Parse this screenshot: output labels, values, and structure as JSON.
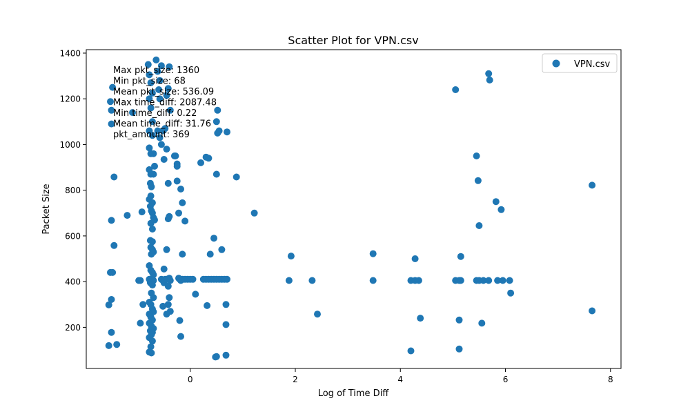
{
  "chart_data": {
    "type": "scatter",
    "title": "Scatter Plot for VPN.csv",
    "xlabel": "Log of Time Diff",
    "ylabel": "Packet Size",
    "xlim": [
      -1.98,
      8.2
    ],
    "ylim": [
      20,
      1415
    ],
    "xticks": [
      0,
      2,
      4,
      6,
      8
    ],
    "yticks": [
      200,
      400,
      600,
      800,
      1000,
      1200,
      1400
    ],
    "grid": false,
    "legend": {
      "position": "top-right",
      "entries": [
        "VPN.csv"
      ]
    },
    "stats": [
      "Max pkt_size: 1360",
      "Min pkt_size: 68",
      "Mean pkt_size: 536.09",
      "Max time_diff: 2087.48",
      "Min time_diff: 0.22",
      "Mean time_diff: 31.76",
      "pkt_amount: 369"
    ],
    "series": [
      {
        "name": "VPN.csv",
        "color": "#1f77b4",
        "points": [
          [
            -1.52,
            1188
          ],
          [
            -1.5,
            1150
          ],
          [
            -1.48,
            1250
          ],
          [
            -1.5,
            1090
          ],
          [
            -1.45,
            858
          ],
          [
            -1.45,
            558
          ],
          [
            -1.5,
            668
          ],
          [
            -1.52,
            440
          ],
          [
            -1.48,
            440
          ],
          [
            -1.55,
            298
          ],
          [
            -1.5,
            322
          ],
          [
            -1.5,
            178
          ],
          [
            -1.55,
            120
          ],
          [
            -1.4,
            125
          ],
          [
            -1.2,
            690
          ],
          [
            -1.1,
            1140
          ],
          [
            -0.98,
            405
          ],
          [
            -0.95,
            405
          ],
          [
            -0.92,
            705
          ],
          [
            -0.9,
            300
          ],
          [
            -0.95,
            218
          ],
          [
            -0.8,
            1350
          ],
          [
            -0.78,
            1305
          ],
          [
            -0.75,
            1270
          ],
          [
            -0.72,
            1225
          ],
          [
            -0.78,
            1200
          ],
          [
            -0.75,
            1160
          ],
          [
            -0.72,
            1100
          ],
          [
            -0.78,
            1060
          ],
          [
            -0.72,
            1040
          ],
          [
            -0.78,
            985
          ],
          [
            -0.75,
            960
          ],
          [
            -0.7,
            960
          ],
          [
            -0.68,
            905
          ],
          [
            -0.78,
            890
          ],
          [
            -0.75,
            870
          ],
          [
            -0.7,
            870
          ],
          [
            -0.76,
            830
          ],
          [
            -0.74,
            815
          ],
          [
            -0.75,
            775
          ],
          [
            -0.78,
            760
          ],
          [
            -0.72,
            745
          ],
          [
            -0.76,
            730
          ],
          [
            -0.74,
            710
          ],
          [
            -0.72,
            700
          ],
          [
            -0.7,
            680
          ],
          [
            -0.68,
            670
          ],
          [
            -0.75,
            655
          ],
          [
            -0.72,
            630
          ],
          [
            -0.76,
            580
          ],
          [
            -0.72,
            575
          ],
          [
            -0.75,
            550
          ],
          [
            -0.72,
            540
          ],
          [
            -0.7,
            530
          ],
          [
            -0.74,
            520
          ],
          [
            -0.78,
            470
          ],
          [
            -0.75,
            450
          ],
          [
            -0.72,
            440
          ],
          [
            -0.7,
            430
          ],
          [
            -0.78,
            410
          ],
          [
            -0.74,
            408
          ],
          [
            -0.7,
            405
          ],
          [
            -0.76,
            395
          ],
          [
            -0.72,
            385
          ],
          [
            -0.74,
            350
          ],
          [
            -0.7,
            330
          ],
          [
            -0.78,
            310
          ],
          [
            -0.75,
            300
          ],
          [
            -0.72,
            280
          ],
          [
            -0.7,
            268
          ],
          [
            -0.78,
            258
          ],
          [
            -0.75,
            245
          ],
          [
            -0.72,
            232
          ],
          [
            -0.78,
            218
          ],
          [
            -0.74,
            205
          ],
          [
            -0.7,
            195
          ],
          [
            -0.76,
            185
          ],
          [
            -0.72,
            178
          ],
          [
            -0.74,
            168
          ],
          [
            -0.78,
            155
          ],
          [
            -0.72,
            140
          ],
          [
            -0.75,
            115
          ],
          [
            -0.78,
            92
          ],
          [
            -0.74,
            88
          ],
          [
            -0.65,
            1370
          ],
          [
            -0.62,
            1320
          ],
          [
            -0.55,
            1345
          ],
          [
            -0.58,
            1280
          ],
          [
            -0.6,
            1240
          ],
          [
            -0.58,
            1200
          ],
          [
            -0.62,
            1060
          ],
          [
            -0.58,
            1030
          ],
          [
            -0.55,
            1000
          ],
          [
            -0.5,
            935
          ],
          [
            -0.52,
            1060
          ],
          [
            -0.48,
            1070
          ],
          [
            -0.45,
            980
          ],
          [
            -0.42,
            1245
          ],
          [
            -0.45,
            1215
          ],
          [
            -0.4,
            1340
          ],
          [
            -0.42,
            830
          ],
          [
            -0.38,
            1150
          ],
          [
            -0.4,
            685
          ],
          [
            -0.42,
            675
          ],
          [
            -0.45,
            540
          ],
          [
            -0.5,
            455
          ],
          [
            -0.55,
            410
          ],
          [
            -0.52,
            405
          ],
          [
            -0.5,
            395
          ],
          [
            -0.48,
            410
          ],
          [
            -0.45,
            410
          ],
          [
            -0.4,
            415
          ],
          [
            -0.38,
            405
          ],
          [
            -0.42,
            380
          ],
          [
            -0.4,
            330
          ],
          [
            -0.42,
            300
          ],
          [
            -0.38,
            270
          ],
          [
            -0.45,
            258
          ],
          [
            -0.52,
            292
          ],
          [
            -0.3,
            950
          ],
          [
            -0.28,
            950
          ],
          [
            -0.25,
            915
          ],
          [
            -0.25,
            905
          ],
          [
            -0.25,
            840
          ],
          [
            -0.22,
            700
          ],
          [
            -0.18,
            805
          ],
          [
            -0.15,
            745
          ],
          [
            -0.1,
            665
          ],
          [
            -0.15,
            520
          ],
          [
            -0.22,
            415
          ],
          [
            -0.2,
            410
          ],
          [
            -0.18,
            405
          ],
          [
            -0.15,
            410
          ],
          [
            -0.1,
            410
          ],
          [
            -0.05,
            410
          ],
          [
            0.0,
            410
          ],
          [
            0.05,
            410
          ],
          [
            -0.2,
            230
          ],
          [
            -0.18,
            160
          ],
          [
            0.1,
            345
          ],
          [
            0.2,
            920
          ],
          [
            0.25,
            410
          ],
          [
            0.3,
            410
          ],
          [
            0.35,
            410
          ],
          [
            0.4,
            410
          ],
          [
            0.3,
            945
          ],
          [
            0.35,
            940
          ],
          [
            0.38,
            520
          ],
          [
            0.45,
            590
          ],
          [
            0.5,
            870
          ],
          [
            0.45,
            410
          ],
          [
            0.5,
            410
          ],
          [
            0.55,
            410
          ],
          [
            0.6,
            410
          ],
          [
            0.65,
            410
          ],
          [
            0.7,
            410
          ],
          [
            0.52,
            1150
          ],
          [
            0.5,
            1100
          ],
          [
            0.55,
            1060
          ],
          [
            0.52,
            1050
          ],
          [
            0.7,
            1055
          ],
          [
            0.6,
            540
          ],
          [
            0.32,
            295
          ],
          [
            0.68,
            300
          ],
          [
            0.68,
            212
          ],
          [
            0.68,
            78
          ],
          [
            0.5,
            72
          ],
          [
            0.48,
            70
          ],
          [
            0.88,
            858
          ],
          [
            1.22,
            700
          ],
          [
            1.88,
            405
          ],
          [
            1.92,
            512
          ],
          [
            2.32,
            405
          ],
          [
            2.42,
            258
          ],
          [
            3.48,
            522
          ],
          [
            3.48,
            405
          ],
          [
            4.2,
            405
          ],
          [
            4.2,
            97
          ],
          [
            4.28,
            500
          ],
          [
            4.28,
            405
          ],
          [
            4.35,
            405
          ],
          [
            4.38,
            240
          ],
          [
            5.05,
            1240
          ],
          [
            5.05,
            405
          ],
          [
            5.12,
            405
          ],
          [
            5.15,
            405
          ],
          [
            5.15,
            510
          ],
          [
            5.12,
            232
          ],
          [
            5.12,
            105
          ],
          [
            5.45,
            950
          ],
          [
            5.48,
            842
          ],
          [
            5.5,
            645
          ],
          [
            5.45,
            405
          ],
          [
            5.5,
            405
          ],
          [
            5.58,
            405
          ],
          [
            5.55,
            218
          ],
          [
            5.68,
            1310
          ],
          [
            5.7,
            1282
          ],
          [
            5.68,
            405
          ],
          [
            5.82,
            750
          ],
          [
            5.85,
            405
          ],
          [
            5.92,
            715
          ],
          [
            5.95,
            405
          ],
          [
            6.08,
            405
          ],
          [
            6.1,
            350
          ],
          [
            7.65,
            822
          ],
          [
            7.65,
            272
          ]
        ]
      }
    ]
  }
}
